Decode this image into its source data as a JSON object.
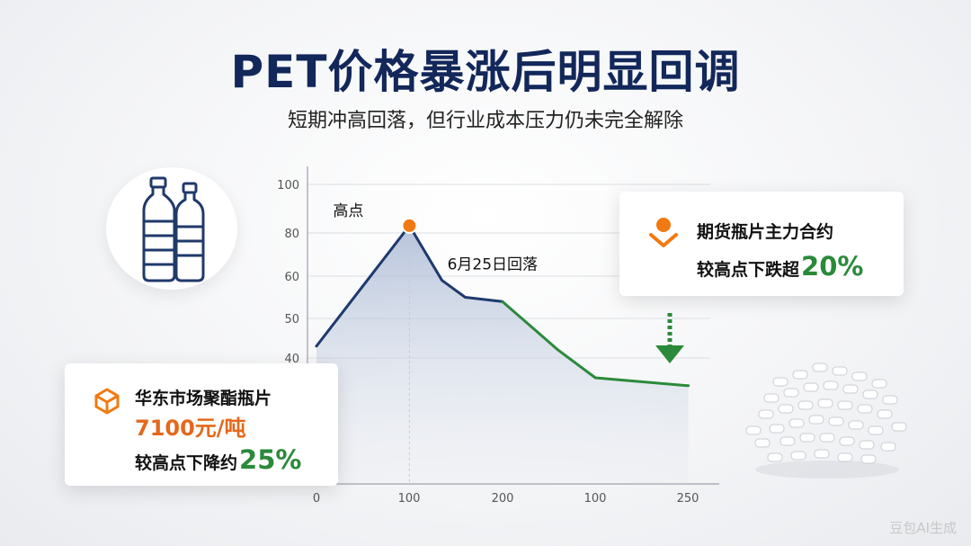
{
  "title": "PET价格暴涨后明显回调",
  "subtitle": "短期冲高回落，但行业成本压力仍未完全解除",
  "card_futures": {
    "title": "期货瓶片主力合约",
    "line_prefix": "较高点下跌超",
    "line_value": "20%",
    "icon": "orange-down-arrow-icon"
  },
  "card_spot": {
    "title": "华东市场聚酯瓶片",
    "price": "7100元/吨",
    "line_prefix": "较高点下降约",
    "line_value": "25%",
    "icon": "orange-box-icon"
  },
  "watermark": "豆包AI生成",
  "colors": {
    "title": "#12275a",
    "rise": "#1e3a6e",
    "fall": "#2a8a3a",
    "peak": "#f07a12",
    "orange": "#e4681c"
  },
  "chart_data": {
    "type": "line",
    "title": "",
    "xlabel": "",
    "ylabel": "",
    "x_tick_labels": [
      "0",
      "100",
      "200",
      "100",
      "250"
    ],
    "y_tick_labels": [
      "40",
      "50",
      "60",
      "80",
      "100"
    ],
    "grid": true,
    "series": [
      {
        "values": [
          {
            "x": 0,
            "y": 43
          },
          {
            "x": 100,
            "y": 83
          },
          {
            "x": 135,
            "y": 59
          },
          {
            "x": 160,
            "y": 55
          },
          {
            "x": 200,
            "y": 54
          }
        ]
      },
      {
        "values": [
          {
            "x": 200,
            "y": 54
          },
          {
            "x": 260,
            "y": 42
          },
          {
            "x": 300,
            "y": 35
          },
          {
            "x": 400,
            "y": 33
          }
        ]
      }
    ],
    "annotations": [
      {
        "label": "高点",
        "point": {
          "x": 100,
          "y": 83
        }
      },
      {
        "label": "6月25日回落",
        "point": {
          "x": 135,
          "y": 59
        }
      }
    ]
  }
}
